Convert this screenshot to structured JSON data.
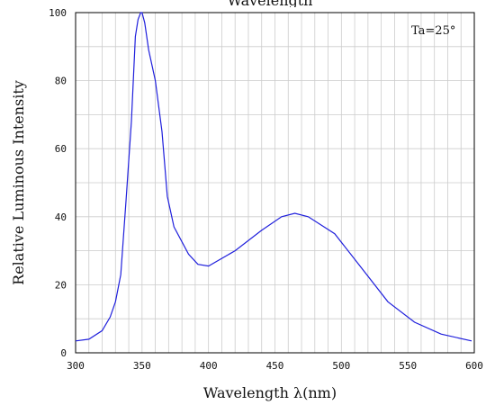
{
  "chart_data": {
    "type": "line",
    "title": "Wavelength",
    "xlabel": "Wavelength λ(nm)",
    "ylabel": "Relative Luminous Intensity",
    "annotation": "Ta=25°",
    "xlim": [
      300,
      600
    ],
    "ylim": [
      0,
      100
    ],
    "grid": true,
    "x_ticks": [
      300,
      350,
      400,
      450,
      500,
      550,
      600
    ],
    "x_tick_labels": [
      "300",
      "350",
      "400",
      "450",
      "500",
      "550",
      "600"
    ],
    "y_ticks": [
      0,
      20,
      40,
      60,
      80,
      100
    ],
    "y_tick_labels": [
      "0",
      "20",
      "40",
      "60",
      "80",
      "100"
    ],
    "colors": {
      "line": "#1f1fdc",
      "grid": "#cccccc",
      "axis": "#000000"
    },
    "series": [
      {
        "x": [
          300,
          310,
          320,
          326,
          330,
          334,
          338,
          342,
          345,
          347,
          349,
          350,
          352,
          355,
          360,
          365,
          369,
          374,
          385,
          392,
          400,
          420,
          440,
          455,
          465,
          475,
          495,
          515,
          535,
          555,
          575,
          598
        ],
        "y": [
          3.5,
          4,
          6.5,
          10.5,
          15,
          23,
          45,
          68,
          93,
          98,
          100,
          100,
          97,
          89,
          80,
          65,
          46,
          37,
          29,
          26,
          25.5,
          30,
          36,
          40,
          41,
          40,
          35,
          25,
          15,
          9,
          5.5,
          3.5
        ]
      }
    ]
  }
}
